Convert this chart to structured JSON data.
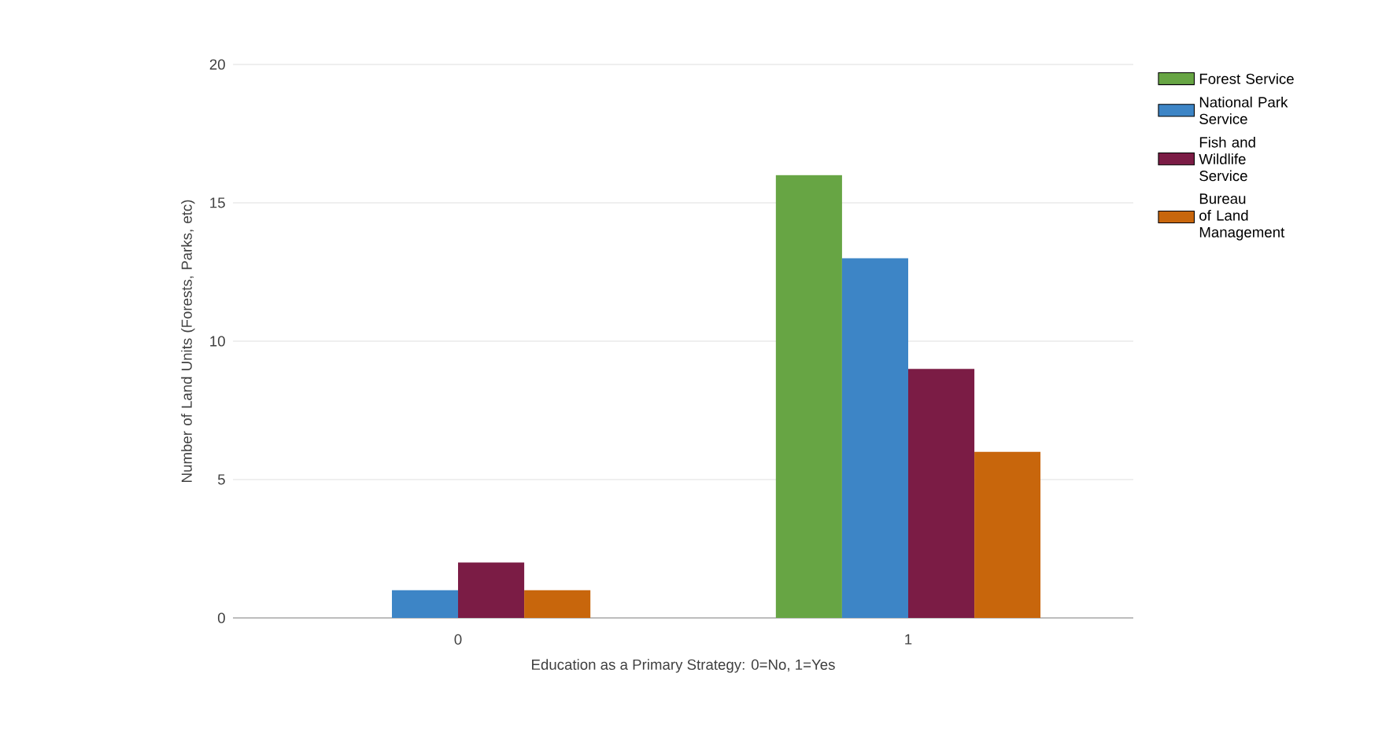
{
  "chart_data": {
    "type": "bar",
    "xlabel": "Education as a Primary Strategy: 0=No, 1=Yes",
    "ylabel": "Number of Land Units (Forests, Parks, etc)",
    "categories": [
      "0",
      "1"
    ],
    "series": [
      {
        "name": "Forest Service",
        "color": "#67a544",
        "values": [
          0,
          16
        ]
      },
      {
        "name": "National Park Service",
        "color": "#3d85c6",
        "values": [
          1,
          13
        ]
      },
      {
        "name": "Fish and Wildlife Service",
        "color": "#7b1c45",
        "values": [
          2,
          9
        ]
      },
      {
        "name": "Bureau of Land Management",
        "color": "#c8660c",
        "values": [
          1,
          6
        ]
      }
    ],
    "ylim": [
      0,
      20
    ],
    "yticks": [
      0,
      5,
      10,
      15,
      20
    ],
    "grid": "y",
    "legend": "top right"
  }
}
